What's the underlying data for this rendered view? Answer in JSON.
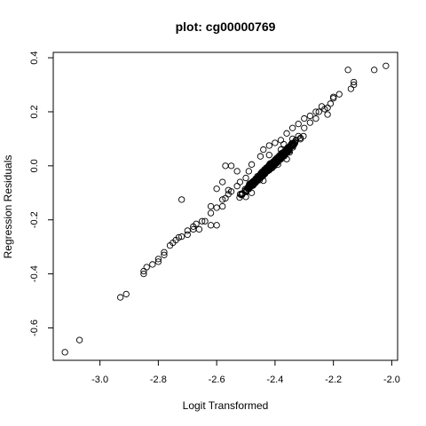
{
  "chart_data": {
    "type": "scatter",
    "title": "plot: cg00000769",
    "xlabel": "Logit Transformed",
    "ylabel": "Regression Residuals",
    "xlim": [
      -3.16,
      -1.98
    ],
    "ylim": [
      -0.72,
      0.42
    ],
    "x_ticks": [
      -3.0,
      -2.8,
      -2.6,
      -2.4,
      -2.2,
      -2.0
    ],
    "x_tick_labels": [
      "-3.0",
      "-2.8",
      "-2.6",
      "-2.4",
      "-2.2",
      "-2.0"
    ],
    "y_ticks": [
      -0.6,
      -0.4,
      -0.2,
      0.0,
      0.2,
      0.4
    ],
    "y_tick_labels": [
      "-0.6",
      "-0.4",
      "-0.2",
      "0.0",
      "0.2",
      "0.4"
    ],
    "grid": false,
    "marker": "open-circle",
    "trend": {
      "intercept": 2.51,
      "slope": 1.04
    },
    "points": [
      [
        -3.12,
        -0.69
      ],
      [
        -3.07,
        -0.645
      ],
      [
        -2.93,
        -0.487
      ],
      [
        -2.91,
        -0.475
      ],
      [
        -2.85,
        -0.4
      ],
      [
        -2.85,
        -0.39
      ],
      [
        -2.84,
        -0.375
      ],
      [
        -2.82,
        -0.365
      ],
      [
        -2.8,
        -0.355
      ],
      [
        -2.8,
        -0.345
      ],
      [
        -2.78,
        -0.33
      ],
      [
        -2.78,
        -0.32
      ],
      [
        -2.76,
        -0.295
      ],
      [
        -2.75,
        -0.285
      ],
      [
        -2.74,
        -0.275
      ],
      [
        -2.73,
        -0.265
      ],
      [
        -2.72,
        -0.262
      ],
      [
        -2.7,
        -0.255
      ],
      [
        -2.68,
        -0.225
      ],
      [
        -2.67,
        -0.215
      ],
      [
        -2.66,
        -0.235
      ],
      [
        -2.64,
        -0.205
      ],
      [
        -2.62,
        -0.175
      ],
      [
        -2.6,
        -0.155
      ],
      [
        -2.58,
        -0.125
      ],
      [
        -2.56,
        -0.09
      ],
      [
        -2.55,
        -0.095
      ],
      [
        -2.53,
        -0.075
      ],
      [
        -2.52,
        -0.06
      ],
      [
        -2.5,
        -0.045
      ],
      [
        -2.49,
        -0.02
      ],
      [
        -2.48,
        0.005
      ],
      [
        -2.45,
        0.035
      ],
      [
        -2.44,
        0.06
      ],
      [
        -2.42,
        0.075
      ],
      [
        -2.4,
        0.085
      ],
      [
        -2.38,
        0.095
      ],
      [
        -2.36,
        0.12
      ],
      [
        -2.34,
        0.14
      ],
      [
        -2.32,
        0.155
      ],
      [
        -2.3,
        0.175
      ],
      [
        -2.28,
        0.185
      ],
      [
        -2.26,
        0.2
      ],
      [
        -2.24,
        0.22
      ],
      [
        -2.2,
        0.255
      ],
      [
        -2.18,
        0.265
      ],
      [
        -2.15,
        0.355
      ],
      [
        -2.13,
        0.31
      ],
      [
        -2.13,
        0.3
      ],
      [
        -2.14,
        0.285
      ],
      [
        -2.06,
        0.355
      ],
      [
        -2.02,
        0.37
      ],
      [
        -2.5,
        -0.115
      ],
      [
        -2.48,
        -0.1
      ],
      [
        -2.4,
        0.02
      ],
      [
        -2.39,
        0.005
      ],
      [
        -2.57,
        0.0
      ],
      [
        -2.53,
        -0.02
      ],
      [
        -2.55,
        0.0
      ],
      [
        -2.58,
        -0.06
      ],
      [
        -2.44,
        -0.055
      ],
      [
        -2.35,
        0.05
      ],
      [
        -2.36,
        0.025
      ],
      [
        -2.37,
        0.08
      ],
      [
        -2.32,
        0.11
      ],
      [
        -2.62,
        -0.22
      ],
      [
        -2.6,
        -0.22
      ],
      [
        -2.57,
        -0.12
      ],
      [
        -2.72,
        -0.125
      ],
      [
        -2.6,
        -0.085
      ],
      [
        -2.58,
        -0.15
      ],
      [
        -2.65,
        -0.205
      ],
      [
        -2.68,
        -0.235
      ],
      [
        -2.7,
        -0.24
      ],
      [
        -2.56,
        -0.105
      ],
      [
        -2.62,
        -0.15
      ],
      [
        -2.38,
        0.06
      ],
      [
        -2.42,
        0.04
      ],
      [
        -2.34,
        0.1
      ],
      [
        -2.3,
        0.14
      ],
      [
        -2.28,
        0.16
      ],
      [
        -2.26,
        0.175
      ],
      [
        -2.25,
        0.2
      ],
      [
        -2.23,
        0.21
      ],
      [
        -2.22,
        0.215
      ],
      [
        -2.21,
        0.23
      ],
      [
        -2.2,
        0.25
      ],
      [
        -2.22,
        0.19
      ]
    ]
  }
}
